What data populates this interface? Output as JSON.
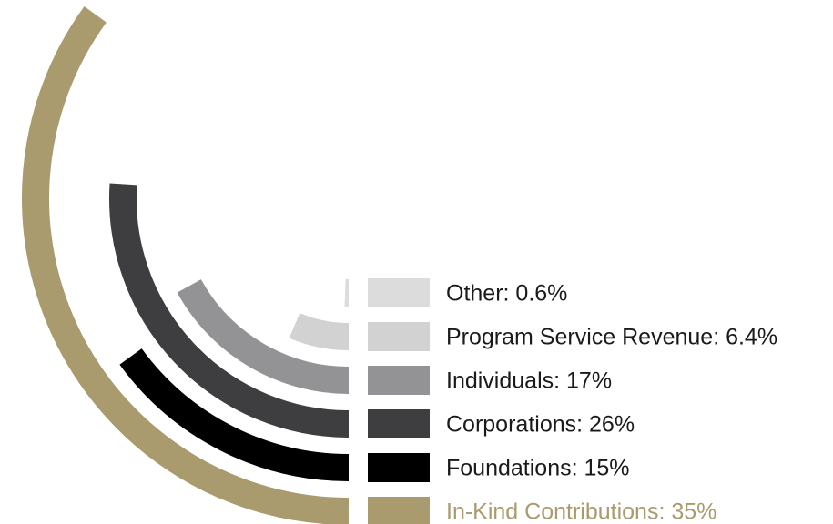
{
  "chart_data": {
    "type": "radial-bar",
    "value_labels": [
      "Other: 0.6%",
      "Program Service Revenue: 6.4%",
      "Individuals: 17%",
      "Corporations: 26%",
      "Foundations: 15%",
      "In-Kind Contributions: 35%"
    ],
    "values": [
      0.6,
      6.4,
      17,
      26,
      15,
      35
    ],
    "colors": [
      "#dcdcdc",
      "#d2d2d3",
      "#939396",
      "#3e3e40",
      "#000000",
      "#a99b6e"
    ],
    "vlim": [
      0,
      100
    ]
  }
}
